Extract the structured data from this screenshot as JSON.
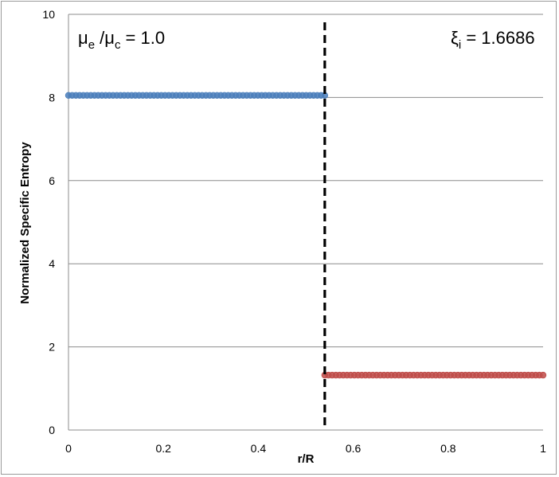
{
  "chart_data": {
    "type": "scatter",
    "xlabel": "r/R",
    "ylabel": "Normalized Specific Entropy",
    "xlim": [
      0,
      1
    ],
    "ylim": [
      0,
      10
    ],
    "xticks": [
      "0",
      "0.2",
      "0.4",
      "0.6",
      "0.8",
      "1"
    ],
    "yticks": [
      "0",
      "2",
      "4",
      "6",
      "8",
      "10"
    ],
    "grid": "horizontal",
    "series": [
      {
        "x_start": 0,
        "x_end": 0.54,
        "y": 8.05,
        "color": "#4a7ebb",
        "n_points": 70
      },
      {
        "x_start": 0.54,
        "x_end": 1.0,
        "y": 1.32,
        "color": "#be4b48",
        "n_points": 60
      }
    ],
    "vertical_line": {
      "x": 0.54,
      "style": "dashed",
      "color": "#000000"
    },
    "annotations": {
      "left": {
        "base1": "μ",
        "sub1": "e",
        "mid": " /μ",
        "sub2": "c",
        "tail": " = 1.0"
      },
      "right": {
        "base": "ξ",
        "sub": "i",
        "tail": " = 1.6686"
      }
    }
  }
}
